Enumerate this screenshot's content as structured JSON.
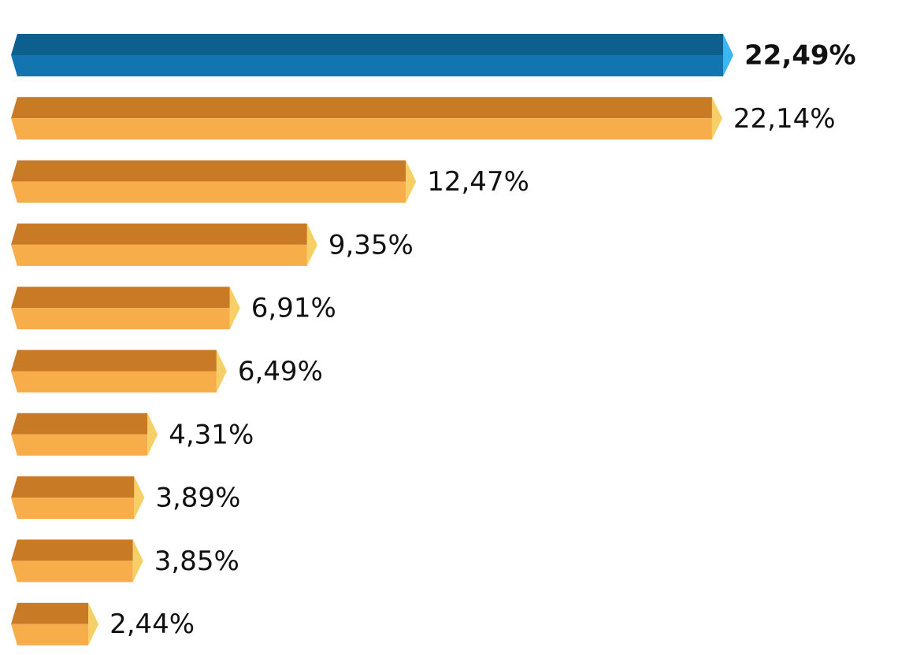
{
  "chart_data": {
    "type": "bar",
    "orientation": "horizontal",
    "style": "3d-prism",
    "title": "",
    "xlabel": "",
    "ylabel": "",
    "xlim": [
      0,
      22.49
    ],
    "grid": false,
    "legend": "none",
    "values": [
      22.49,
      22.14,
      12.47,
      9.35,
      6.91,
      6.49,
      4.31,
      3.89,
      3.85,
      2.44
    ],
    "labels": [
      "22,49%",
      "22,14%",
      "12,47%",
      "9,35%",
      "6,91%",
      "6,49%",
      "4,31%",
      "3,89%",
      "3,85%",
      "2,44%"
    ],
    "highlight_index": 0
  },
  "colors": {
    "highlight_top": "#0d5f8e",
    "highlight_bottom": "#1275b0",
    "highlight_cap": "#3db5f0",
    "bar_top": "#c97a25",
    "bar_bottom": "#f7ad4a",
    "bar_cap": "#f6d066",
    "label": "#111111"
  }
}
